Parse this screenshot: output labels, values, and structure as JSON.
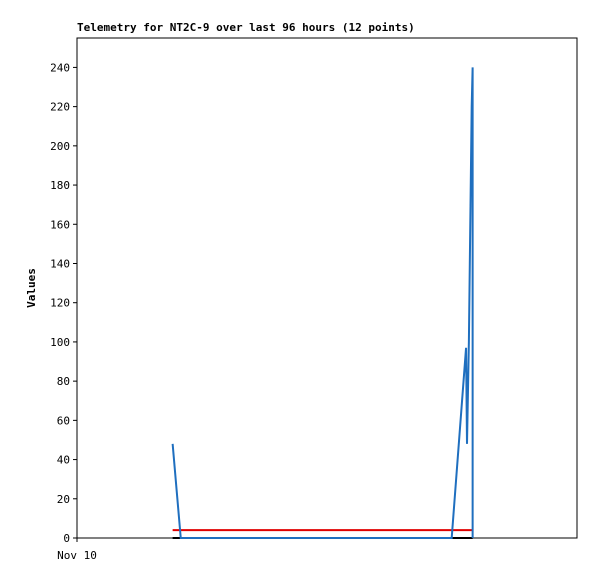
{
  "chart_data": {
    "type": "line",
    "title": "Telemetry for NT2C-9 over last 96 hours (12 points)",
    "y_label": "Values",
    "xlim": [
      0,
      160
    ],
    "xticks": [
      {
        "value": 0,
        "label": "Nov 10"
      }
    ],
    "ylim": [
      0,
      255
    ],
    "yticks": [
      0,
      20,
      40,
      60,
      80,
      100,
      120,
      140,
      160,
      180,
      200,
      220,
      240
    ],
    "series": [
      {
        "color": "#000000",
        "x": [
          30.6,
          126.6
        ],
        "values": [
          0,
          0
        ]
      },
      {
        "color": "#e00000",
        "x": [
          30.6,
          126.6
        ],
        "values": [
          4,
          4
        ]
      },
      {
        "color": "#1f6fbf",
        "x": [
          30.6,
          33.2,
          76,
          119.9,
          124.5,
          124.8,
          125.4,
          125.7,
          126.0,
          126.3,
          126.6,
          126.6
        ],
        "values": [
          48,
          0,
          0,
          0,
          97,
          48,
          100,
          140,
          180,
          220,
          240,
          0
        ]
      }
    ]
  }
}
